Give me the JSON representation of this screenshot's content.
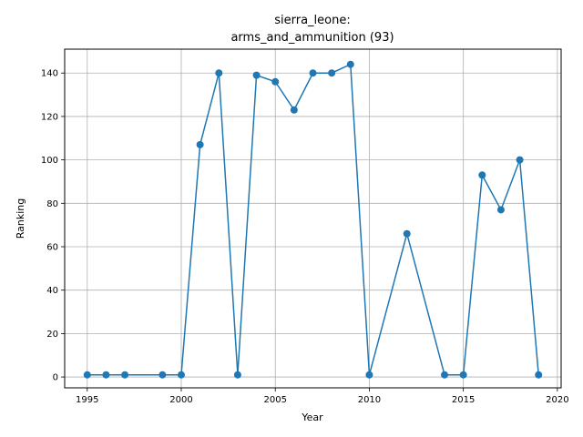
{
  "chart_data": {
    "type": "line",
    "title_line1": "sierra_leone:",
    "title_line2": "arms_and_ammunition (93)",
    "xlabel": "Year",
    "ylabel": "Ranking",
    "xlim": [
      1993.8,
      2020.2
    ],
    "ylim": [
      -5,
      151
    ],
    "xticks": [
      1995,
      2000,
      2005,
      2010,
      2015,
      2020
    ],
    "yticks": [
      0,
      20,
      40,
      60,
      80,
      100,
      120,
      140
    ],
    "grid": true,
    "line_color": "#1f77b4",
    "series": [
      {
        "x": [
          1995,
          1996,
          1997,
          1999,
          2000,
          2001,
          2002,
          2003,
          2004,
          2005,
          2006,
          2007,
          2008,
          2009,
          2010,
          2012,
          2014,
          2015,
          2016,
          2017,
          2018,
          2019
        ],
        "y": [
          1,
          1,
          1,
          1,
          1,
          107,
          140,
          1,
          139,
          136,
          123,
          140,
          140,
          144,
          1,
          66,
          1,
          1,
          93,
          77,
          100,
          1
        ]
      }
    ]
  }
}
